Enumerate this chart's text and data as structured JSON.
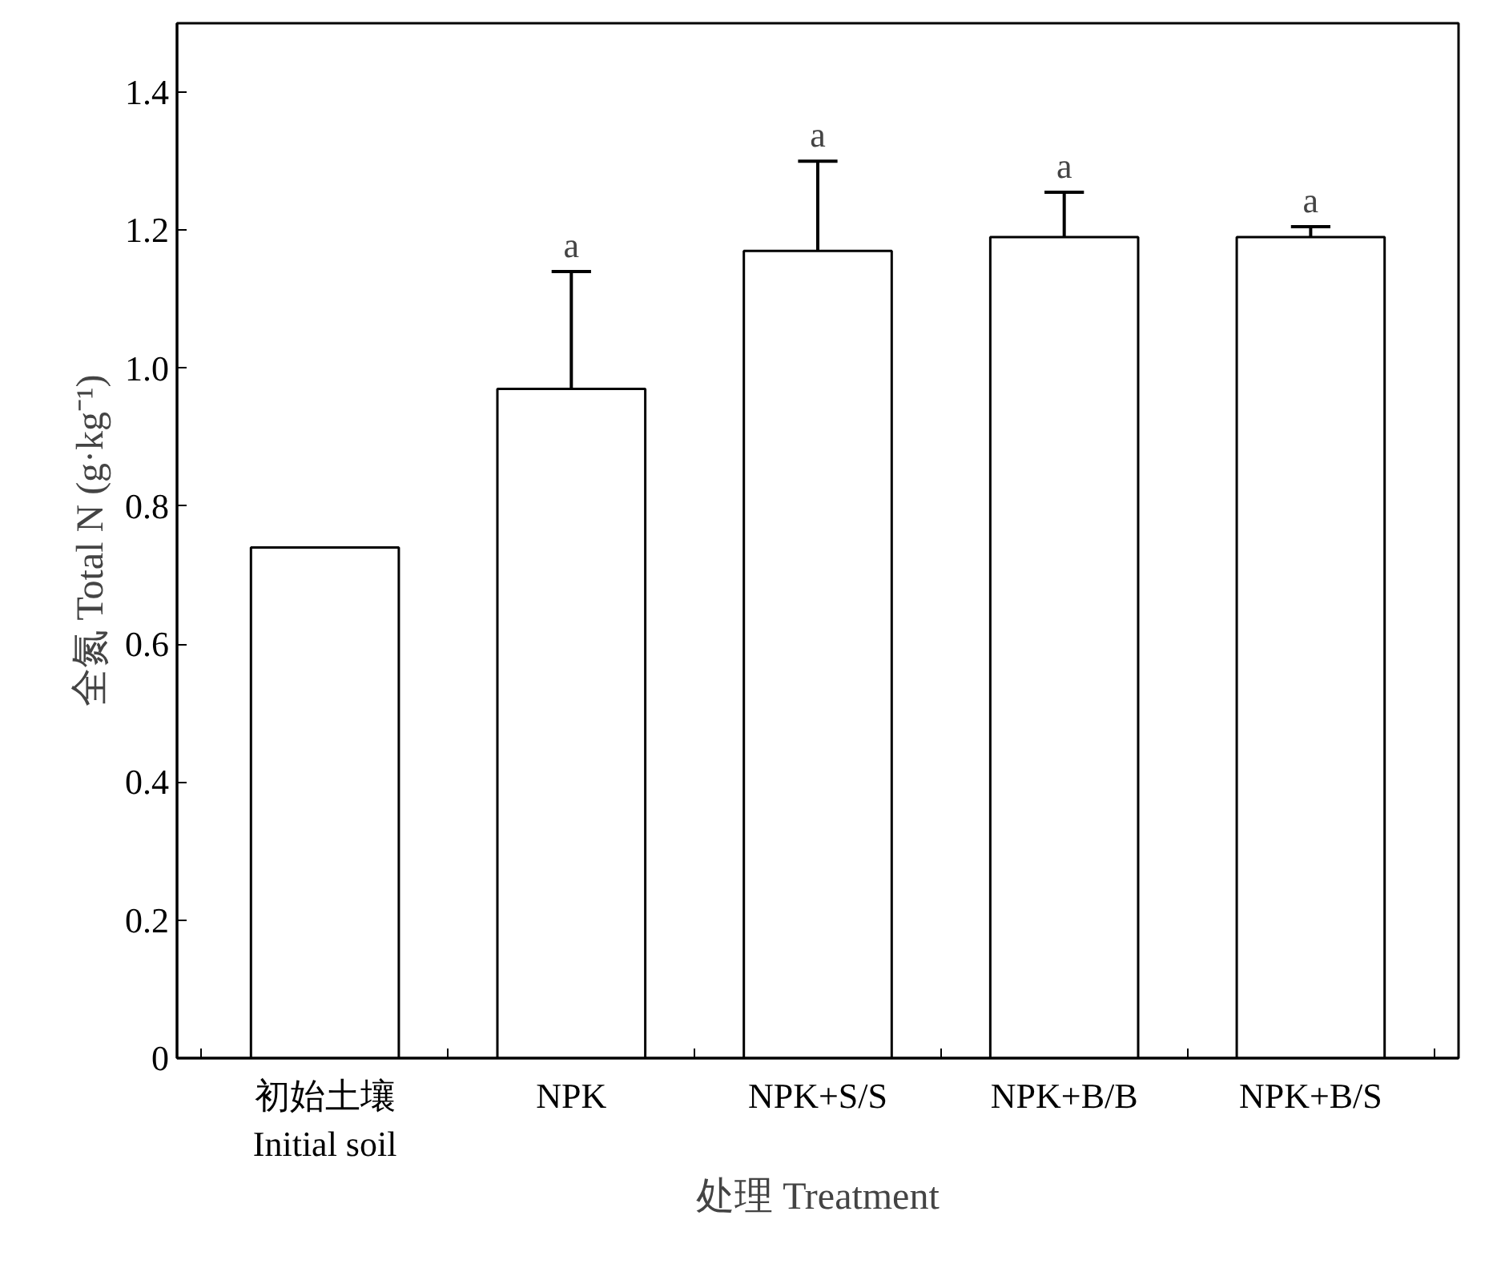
{
  "chart_data": {
    "type": "bar",
    "xlabel": "处理 Treatment",
    "ylabel": "全氮 Total N (g·kg⁻¹)",
    "categories": [
      "初始土壤\nInitial soil",
      "NPK",
      "NPK+S/S",
      "NPK+B/B",
      "NPK+B/S"
    ],
    "values": [
      0.74,
      0.97,
      1.17,
      1.19,
      1.19
    ],
    "errors": [
      null,
      [
        0.97,
        1.14
      ],
      [
        1.17,
        1.3
      ],
      [
        1.19,
        1.255
      ],
      [
        1.19,
        1.205
      ]
    ],
    "color": "#ffffff",
    "ylim": [
      0,
      1.5
    ],
    "yticks": [
      0,
      0.2,
      0.4,
      0.6,
      0.8,
      {
        "value": 1,
        "label": "1.0"
      },
      1.2,
      1.4
    ],
    "grid": false,
    "annotations": [
      "a",
      "a",
      "a",
      "a"
    ]
  }
}
